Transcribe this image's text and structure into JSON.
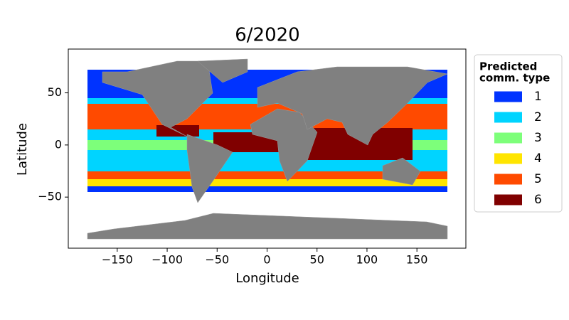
{
  "chart_data": {
    "type": "map",
    "title": "6/2020",
    "xlabel": "Longitude",
    "ylabel": "Latitude",
    "xlim": [
      -199,
      199
    ],
    "ylim": [
      -99,
      92
    ],
    "xticks": [
      {
        "value": -150,
        "label": "−150"
      },
      {
        "value": -100,
        "label": "−100"
      },
      {
        "value": -50,
        "label": "−50"
      },
      0,
      50,
      100,
      150
    ],
    "yticks": [
      {
        "value": -50,
        "label": "−50"
      },
      0,
      50
    ],
    "legend_title": [
      "Predicted",
      "comm. type"
    ],
    "legend_position": "outside right",
    "series": [
      {
        "name": "1",
        "color": "#0033ff"
      },
      {
        "name": "2",
        "color": "#00d4ff"
      },
      {
        "name": "3",
        "color": "#7dff7a"
      },
      {
        "name": "4",
        "color": "#ffe500"
      },
      {
        "name": "5",
        "color": "#ff4a00"
      },
      {
        "name": "6",
        "color": "#800000"
      }
    ]
  }
}
